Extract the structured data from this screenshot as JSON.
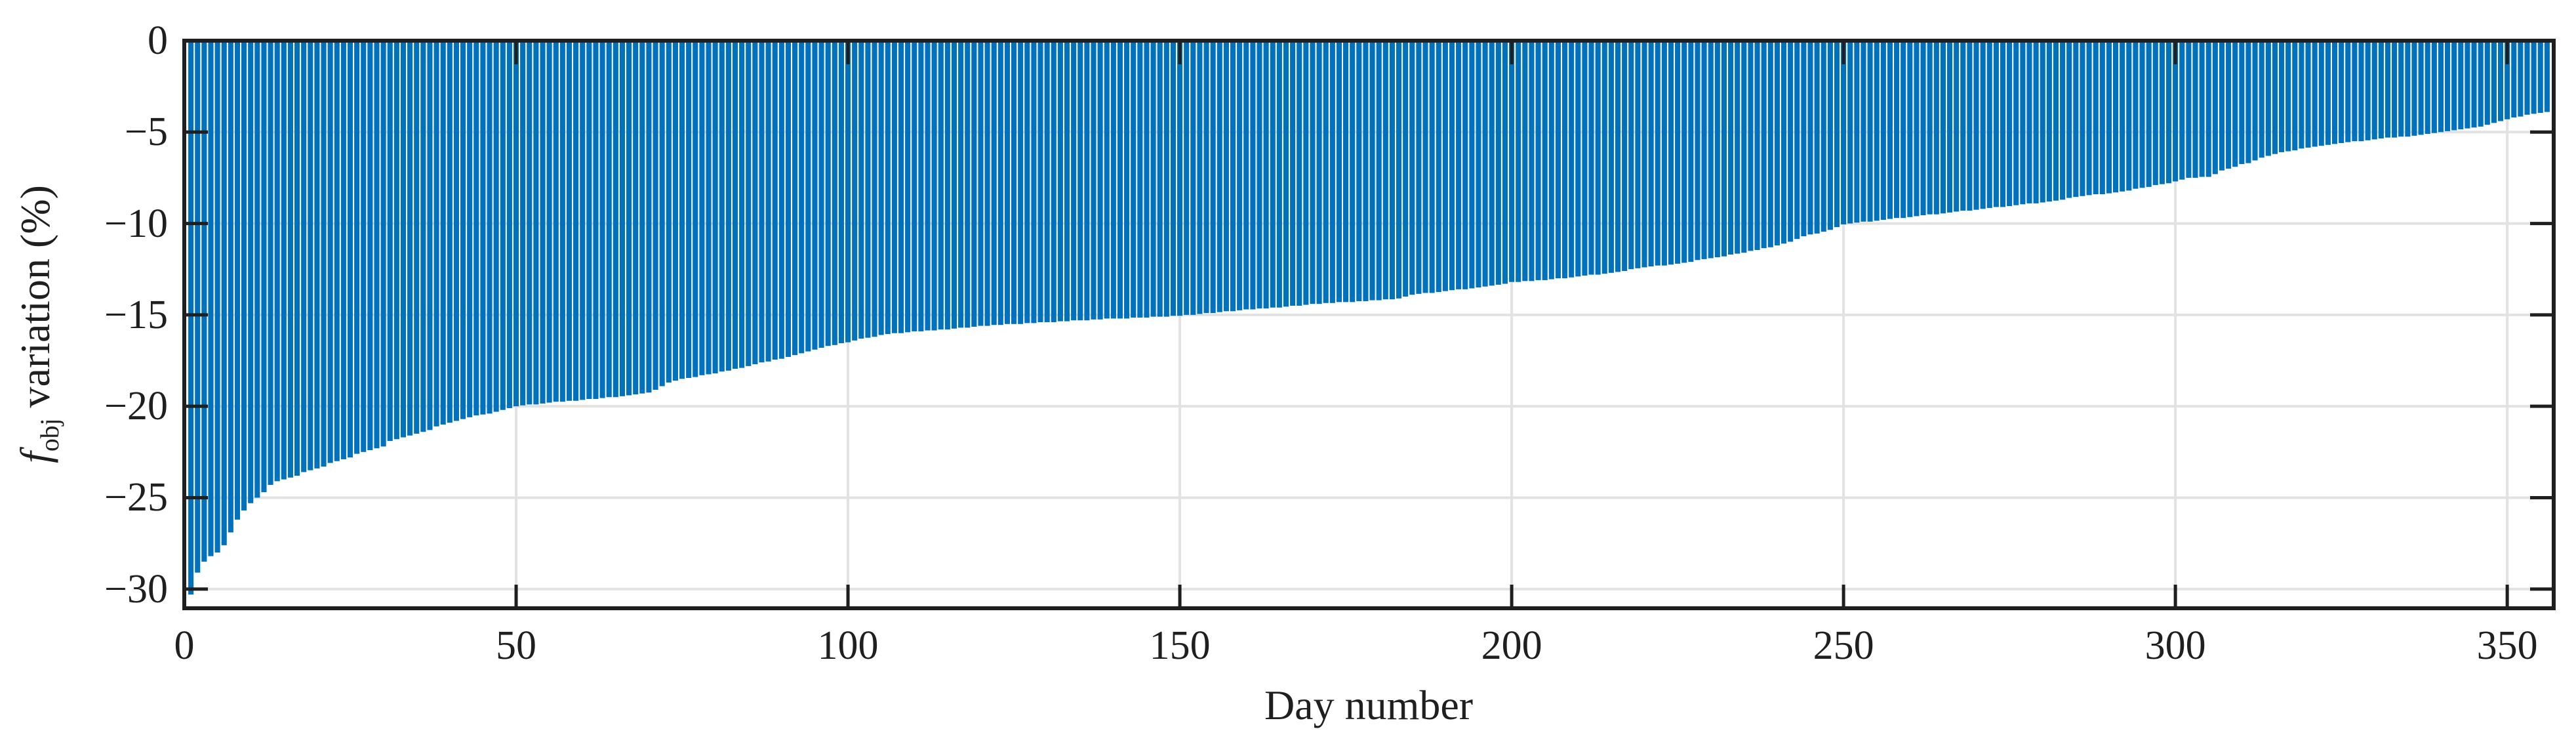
{
  "chart_data": {
    "type": "bar",
    "title": "",
    "xlabel": "Day number",
    "ylabel": "f_obj variation (%)",
    "ylabel_parts": {
      "f": "f",
      "sub": "obj",
      "rest": " variation (%)"
    },
    "x_start_day": 1,
    "n_bars": 356,
    "xlim": [
      0,
      357
    ],
    "ylim": [
      -31.05,
      0
    ],
    "xticks": [
      0,
      50,
      100,
      150,
      200,
      250,
      300,
      350
    ],
    "yticks": [
      0,
      -5,
      -10,
      -15,
      -20,
      -25,
      -30
    ],
    "grid": "on",
    "legend": "none",
    "bar_color": "#0072BD",
    "axis_color": "#1f1f1f",
    "grid_color": "#e2e2e2",
    "background_color": "#ffffff",
    "values": [
      -30.3,
      -29.1,
      -28.5,
      -28.2,
      -28.0,
      -27.6,
      -26.9,
      -26.2,
      -25.7,
      -25.3,
      -25.0,
      -24.7,
      -24.3,
      -24.1,
      -24.0,
      -23.9,
      -23.8,
      -23.6,
      -23.5,
      -23.4,
      -23.3,
      -23.1,
      -23.0,
      -22.9,
      -22.8,
      -22.6,
      -22.5,
      -22.4,
      -22.3,
      -22.2,
      -21.9,
      -21.8,
      -21.7,
      -21.6,
      -21.5,
      -21.4,
      -21.3,
      -21.1,
      -21.0,
      -20.9,
      -20.8,
      -20.7,
      -20.6,
      -20.5,
      -20.45,
      -20.4,
      -20.3,
      -20.2,
      -20.1,
      -20.0,
      -19.95,
      -19.9,
      -19.9,
      -19.85,
      -19.8,
      -19.75,
      -19.75,
      -19.7,
      -19.7,
      -19.65,
      -19.6,
      -19.6,
      -19.55,
      -19.5,
      -19.5,
      -19.45,
      -19.4,
      -19.35,
      -19.3,
      -19.25,
      -19.1,
      -18.9,
      -18.7,
      -18.6,
      -18.5,
      -18.45,
      -18.4,
      -18.3,
      -18.25,
      -18.2,
      -18.1,
      -18.05,
      -17.95,
      -17.9,
      -17.8,
      -17.7,
      -17.6,
      -17.55,
      -17.45,
      -17.4,
      -17.3,
      -17.2,
      -17.1,
      -17.0,
      -16.9,
      -16.8,
      -16.7,
      -16.65,
      -16.55,
      -16.5,
      -16.4,
      -16.3,
      -16.25,
      -16.2,
      -16.1,
      -16.05,
      -16.0,
      -16.0,
      -15.95,
      -15.9,
      -15.9,
      -15.85,
      -15.85,
      -15.8,
      -15.8,
      -15.75,
      -15.7,
      -15.7,
      -15.65,
      -15.6,
      -15.6,
      -15.55,
      -15.55,
      -15.5,
      -15.5,
      -15.5,
      -15.45,
      -15.45,
      -15.4,
      -15.4,
      -15.4,
      -15.35,
      -15.35,
      -15.3,
      -15.3,
      -15.3,
      -15.25,
      -15.25,
      -15.2,
      -15.2,
      -15.2,
      -15.2,
      -15.15,
      -15.15,
      -15.15,
      -15.1,
      -15.1,
      -15.1,
      -15.05,
      -15.05,
      -15.0,
      -15.0,
      -14.95,
      -14.9,
      -14.9,
      -14.85,
      -14.8,
      -14.8,
      -14.75,
      -14.7,
      -14.7,
      -14.65,
      -14.65,
      -14.6,
      -14.6,
      -14.55,
      -14.5,
      -14.5,
      -14.45,
      -14.4,
      -14.4,
      -14.35,
      -14.35,
      -14.3,
      -14.3,
      -14.3,
      -14.25,
      -14.25,
      -14.2,
      -14.2,
      -14.15,
      -14.15,
      -14.1,
      -14.0,
      -13.9,
      -13.85,
      -13.8,
      -13.8,
      -13.75,
      -13.7,
      -13.65,
      -13.6,
      -13.6,
      -13.55,
      -13.5,
      -13.45,
      -13.4,
      -13.35,
      -13.3,
      -13.2,
      -13.2,
      -13.15,
      -13.15,
      -13.1,
      -13.1,
      -13.05,
      -13.0,
      -13.0,
      -12.95,
      -12.9,
      -12.85,
      -12.8,
      -12.8,
      -12.75,
      -12.7,
      -12.65,
      -12.6,
      -12.5,
      -12.45,
      -12.4,
      -12.35,
      -12.3,
      -12.3,
      -12.25,
      -12.2,
      -12.15,
      -12.1,
      -12.0,
      -11.95,
      -11.9,
      -11.85,
      -11.8,
      -11.7,
      -11.65,
      -11.6,
      -11.5,
      -11.45,
      -11.35,
      -11.3,
      -11.2,
      -11.1,
      -11.0,
      -10.85,
      -10.7,
      -10.6,
      -10.55,
      -10.45,
      -10.35,
      -10.2,
      -10.05,
      -10.0,
      -9.95,
      -9.9,
      -9.9,
      -9.85,
      -9.8,
      -9.75,
      -9.7,
      -9.7,
      -9.65,
      -9.6,
      -9.55,
      -9.5,
      -9.5,
      -9.45,
      -9.4,
      -9.35,
      -9.3,
      -9.3,
      -9.25,
      -9.2,
      -9.15,
      -9.1,
      -9.1,
      -9.05,
      -9.0,
      -8.95,
      -8.9,
      -8.9,
      -8.85,
      -8.8,
      -8.75,
      -8.7,
      -8.6,
      -8.55,
      -8.5,
      -8.45,
      -8.4,
      -8.4,
      -8.35,
      -8.3,
      -8.25,
      -8.2,
      -8.1,
      -8.05,
      -8.0,
      -7.9,
      -7.85,
      -7.8,
      -7.7,
      -7.6,
      -7.5,
      -7.5,
      -7.45,
      -7.45,
      -7.3,
      -7.1,
      -7.0,
      -6.9,
      -6.75,
      -6.7,
      -6.55,
      -6.4,
      -6.3,
      -6.2,
      -6.1,
      -6.05,
      -6.0,
      -5.9,
      -5.85,
      -5.8,
      -5.75,
      -5.7,
      -5.65,
      -5.6,
      -5.55,
      -5.5,
      -5.5,
      -5.45,
      -5.4,
      -5.35,
      -5.3,
      -5.3,
      -5.25,
      -5.25,
      -5.2,
      -5.15,
      -5.1,
      -5.05,
      -5.0,
      -4.95,
      -4.9,
      -4.85,
      -4.8,
      -4.75,
      -4.7,
      -4.6,
      -4.5,
      -4.4,
      -4.3,
      -4.2,
      -4.15,
      -4.05,
      -4.0,
      -3.95,
      -3.9
    ]
  }
}
